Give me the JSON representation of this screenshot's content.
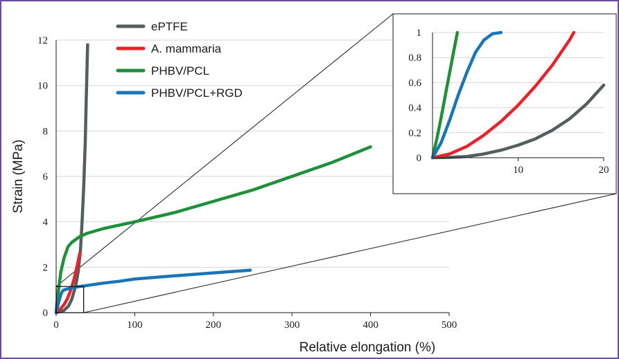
{
  "chart_data": [
    {
      "type": "line",
      "xlabel": "Relative elongation (%)",
      "ylabel": "Strain (MPa)",
      "xlim": [
        0,
        500
      ],
      "ylim": [
        0,
        12
      ],
      "xticks": [
        0,
        100,
        200,
        300,
        400,
        500
      ],
      "yticks": [
        0,
        2,
        4,
        6,
        8,
        10,
        12
      ],
      "grid": "horizontal",
      "legend": "top-left",
      "series": [
        {
          "name": "ePTFE",
          "color": "#545e5e",
          "x": [
            0,
            10,
            16,
            20,
            25,
            28,
            31,
            33,
            35,
            37,
            38,
            40
          ],
          "y": [
            0,
            0.1,
            0.3,
            0.6,
            1.2,
            1.8,
            2.8,
            4,
            5.5,
            7.5,
            9,
            11.8
          ]
        },
        {
          "name": "A. mammaria",
          "color": "#e8232b",
          "x": [
            0,
            5,
            10,
            14,
            17,
            20,
            23,
            25,
            27,
            30
          ],
          "y": [
            0,
            0.15,
            0.35,
            0.6,
            0.85,
            1.15,
            1.5,
            1.8,
            2.1,
            2.6
          ]
        },
        {
          "name": "PHBV/PCL",
          "color": "#1f8f3a",
          "x": [
            0,
            1,
            3,
            6,
            10,
            15,
            20,
            30,
            40,
            60,
            80,
            100,
            150,
            200,
            250,
            300,
            350,
            400
          ],
          "y": [
            0,
            0.4,
            1,
            1.8,
            2.4,
            2.9,
            3.1,
            3.35,
            3.5,
            3.7,
            3.85,
            4.0,
            4.4,
            4.9,
            5.4,
            6.0,
            6.6,
            7.3
          ]
        },
        {
          "name": "PHBV/PCL+RGD",
          "color": "#1a75b8",
          "x": [
            0,
            1,
            2,
            4,
            6,
            8,
            10,
            15,
            20,
            30,
            40,
            60,
            80,
            100,
            150,
            200,
            247
          ],
          "y": [
            0,
            0.15,
            0.3,
            0.55,
            0.8,
            0.95,
            1.0,
            1.05,
            1.1,
            1.15,
            1.2,
            1.3,
            1.38,
            1.48,
            1.62,
            1.75,
            1.87
          ]
        }
      ]
    },
    {
      "type": "line",
      "xlim": [
        0,
        20
      ],
      "ylim": [
        0,
        1
      ],
      "xticks": [
        10,
        20
      ],
      "yticks": [
        0,
        0.2,
        0.4,
        0.6,
        0.8,
        1
      ],
      "series": [
        {
          "color": "#545e5e",
          "x": [
            0,
            2,
            4,
            6,
            8,
            10,
            12,
            14,
            16,
            18,
            20
          ],
          "y": [
            0,
            0.003,
            0.01,
            0.03,
            0.06,
            0.1,
            0.15,
            0.22,
            0.31,
            0.43,
            0.58
          ]
        },
        {
          "color": "#e8232b",
          "x": [
            0,
            2,
            4,
            6,
            8,
            10,
            12,
            14,
            16,
            16.5
          ],
          "y": [
            0,
            0.03,
            0.09,
            0.18,
            0.29,
            0.42,
            0.57,
            0.74,
            0.94,
            1.0
          ]
        },
        {
          "color": "#1f8f3a",
          "x": [
            0,
            0.5,
            1,
            1.5,
            2,
            2.5,
            2.9
          ],
          "y": [
            0,
            0.15,
            0.32,
            0.5,
            0.68,
            0.86,
            1.0
          ]
        },
        {
          "color": "#1a75b8",
          "x": [
            0,
            1,
            2,
            3,
            4,
            5,
            6,
            7,
            8
          ],
          "y": [
            0,
            0.12,
            0.3,
            0.5,
            0.68,
            0.84,
            0.94,
            0.99,
            1.0
          ]
        }
      ]
    }
  ]
}
